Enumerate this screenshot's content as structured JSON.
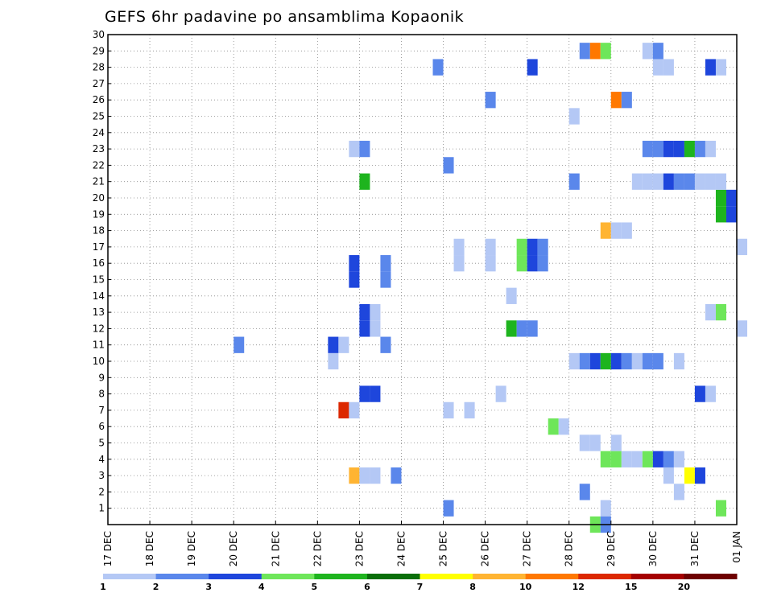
{
  "chart_data": {
    "type": "heatmap",
    "title": "GEFS 6hr padavine po ansamblima Kopaonik",
    "xlabel": "",
    "ylabel": "",
    "x_tick_labels": [
      "17 DEC",
      "18 DEC",
      "19 DEC",
      "20 DEC",
      "21 DEC",
      "22 DEC",
      "23 DEC",
      "24 DEC",
      "25 DEC",
      "26 DEC",
      "27 DEC",
      "28 DEC",
      "29 DEC",
      "30 DEC",
      "31 DEC",
      "01 JAN"
    ],
    "x_range_days": [
      0,
      15
    ],
    "y_range": [
      0,
      30
    ],
    "y_ticks": [
      1,
      2,
      3,
      4,
      5,
      6,
      7,
      8,
      9,
      10,
      11,
      12,
      13,
      14,
      15,
      16,
      17,
      18,
      19,
      20,
      21,
      22,
      23,
      24,
      25,
      26,
      27,
      28,
      29,
      30
    ],
    "grid": true,
    "legend": {
      "placement": "bottom",
      "labels": [
        "1",
        "2",
        "3",
        "4",
        "5",
        "6",
        "7",
        "8",
        "10",
        "12",
        "15",
        "20"
      ],
      "colors": [
        "#b4c8f5",
        "#5a87eb",
        "#1e46dc",
        "#6ee65a",
        "#1eb41e",
        "#0a6e0a",
        "#ffff00",
        "#ffb432",
        "#ff7800",
        "#dc2800",
        "#a50000",
        "#6e0000"
      ]
    },
    "cells": [
      [
        8.0,
        1,
        2
      ],
      [
        11.75,
        1,
        1
      ],
      [
        14.5,
        1,
        4
      ],
      [
        11.25,
        2,
        2
      ],
      [
        13.5,
        2,
        1
      ],
      [
        5.75,
        3,
        8
      ],
      [
        6.0,
        3,
        1
      ],
      [
        6.25,
        3,
        1
      ],
      [
        6.75,
        3,
        2
      ],
      [
        13.25,
        3,
        1
      ],
      [
        13.75,
        3,
        7
      ],
      [
        14.0,
        3,
        3
      ],
      [
        11.75,
        4,
        4
      ],
      [
        12.0,
        4,
        4
      ],
      [
        12.25,
        4,
        1
      ],
      [
        12.5,
        4,
        1
      ],
      [
        12.75,
        4,
        4
      ],
      [
        13.0,
        4,
        3
      ],
      [
        13.25,
        4,
        2
      ],
      [
        13.5,
        4,
        1
      ],
      [
        11.25,
        5,
        1
      ],
      [
        11.5,
        5,
        1
      ],
      [
        12.0,
        5,
        1
      ],
      [
        10.5,
        6,
        4
      ],
      [
        10.75,
        6,
        1
      ],
      [
        5.5,
        7,
        10
      ],
      [
        5.75,
        7,
        1
      ],
      [
        8.0,
        7,
        1
      ],
      [
        8.5,
        7,
        1
      ],
      [
        6.0,
        8,
        3
      ],
      [
        6.25,
        8,
        3
      ],
      [
        9.25,
        8,
        1
      ],
      [
        14.0,
        8,
        3
      ],
      [
        14.25,
        8,
        1
      ],
      [
        5.25,
        10,
        1
      ],
      [
        11.0,
        10,
        1
      ],
      [
        11.25,
        10,
        2
      ],
      [
        11.5,
        10,
        3
      ],
      [
        11.75,
        10,
        5
      ],
      [
        12.0,
        10,
        3
      ],
      [
        12.25,
        10,
        2
      ],
      [
        12.5,
        10,
        1
      ],
      [
        12.75,
        10,
        2
      ],
      [
        13.0,
        10,
        2
      ],
      [
        13.5,
        10,
        1
      ],
      [
        3.0,
        11,
        2
      ],
      [
        5.25,
        11,
        3
      ],
      [
        5.5,
        11,
        1
      ],
      [
        6.5,
        11,
        2
      ],
      [
        6.0,
        12,
        3
      ],
      [
        6.25,
        12,
        1
      ],
      [
        9.5,
        12,
        5
      ],
      [
        9.75,
        12,
        2
      ],
      [
        10.0,
        12,
        2
      ],
      [
        15.0,
        12,
        1
      ],
      [
        6.0,
        13,
        3
      ],
      [
        6.25,
        13,
        1
      ],
      [
        14.25,
        13,
        1
      ],
      [
        14.5,
        13,
        4
      ],
      [
        9.5,
        14,
        1
      ],
      [
        5.75,
        15,
        3
      ],
      [
        6.5,
        15,
        2
      ],
      [
        5.75,
        16,
        3
      ],
      [
        6.5,
        16,
        2
      ],
      [
        8.25,
        16,
        1
      ],
      [
        9.0,
        16,
        1
      ],
      [
        9.75,
        16,
        4
      ],
      [
        10.0,
        16,
        3
      ],
      [
        10.25,
        16,
        2
      ],
      [
        8.25,
        17,
        1
      ],
      [
        9.0,
        17,
        1
      ],
      [
        9.75,
        17,
        4
      ],
      [
        10.0,
        17,
        3
      ],
      [
        10.25,
        17,
        2
      ],
      [
        15.0,
        17,
        1
      ],
      [
        11.75,
        18,
        8
      ],
      [
        12.0,
        18,
        1
      ],
      [
        12.25,
        18,
        1
      ],
      [
        14.5,
        19,
        5
      ],
      [
        14.75,
        19,
        3
      ],
      [
        14.5,
        20,
        5
      ],
      [
        14.75,
        20,
        3
      ],
      [
        6.0,
        21,
        5
      ],
      [
        11.0,
        21,
        2
      ],
      [
        12.5,
        21,
        1
      ],
      [
        12.75,
        21,
        1
      ],
      [
        13.0,
        21,
        1
      ],
      [
        13.25,
        21,
        3
      ],
      [
        13.5,
        21,
        2
      ],
      [
        13.75,
        21,
        2
      ],
      [
        14.0,
        21,
        1
      ],
      [
        14.25,
        21,
        1
      ],
      [
        14.5,
        21,
        1
      ],
      [
        8.0,
        22,
        2
      ],
      [
        5.75,
        23,
        1
      ],
      [
        6.0,
        23,
        2
      ],
      [
        12.75,
        23,
        2
      ],
      [
        13.0,
        23,
        2
      ],
      [
        13.25,
        23,
        3
      ],
      [
        13.5,
        23,
        3
      ],
      [
        13.75,
        23,
        5
      ],
      [
        14.0,
        23,
        2
      ],
      [
        14.25,
        23,
        1
      ],
      [
        11.0,
        25,
        1
      ],
      [
        9.0,
        26,
        2
      ],
      [
        12.0,
        26,
        9
      ],
      [
        12.25,
        26,
        2
      ],
      [
        7.75,
        28,
        2
      ],
      [
        10.0,
        28,
        3
      ],
      [
        13.0,
        28,
        1
      ],
      [
        13.25,
        28,
        1
      ],
      [
        14.25,
        28,
        3
      ],
      [
        14.5,
        28,
        1
      ],
      [
        11.25,
        29,
        2
      ],
      [
        11.5,
        29,
        9
      ],
      [
        11.75,
        29,
        4
      ],
      [
        12.75,
        29,
        1
      ],
      [
        13.0,
        29,
        2
      ],
      [
        11.5,
        0,
        4
      ],
      [
        11.75,
        0,
        2
      ]
    ]
  }
}
